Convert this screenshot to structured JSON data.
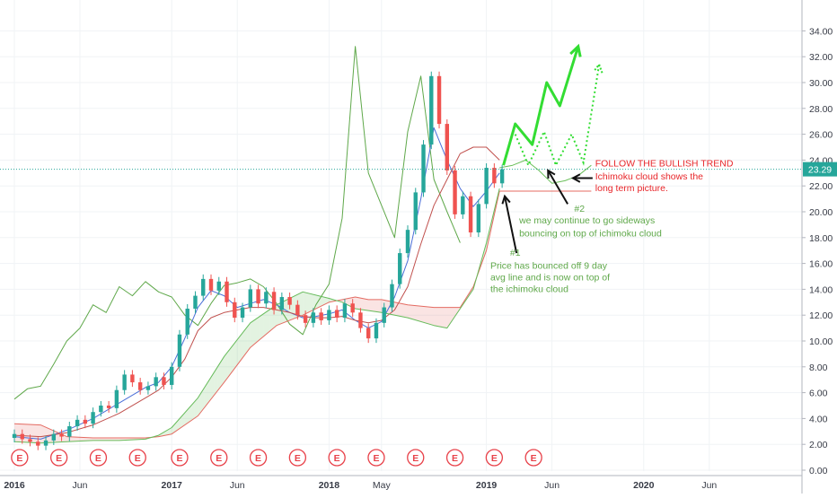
{
  "chart_data": {
    "type": "candlestick",
    "title": "",
    "xlabel": "",
    "ylabel": "",
    "ylim": [
      0,
      35
    ],
    "y_ticks": [
      "0.00",
      "2.00",
      "4.00",
      "6.00",
      "8.00",
      "10.00",
      "12.00",
      "14.00",
      "16.00",
      "18.00",
      "20.00",
      "22.00",
      "24.00",
      "26.00",
      "28.00",
      "30.00",
      "32.00",
      "34.00"
    ],
    "x_ticks": [
      {
        "label": "2016",
        "t": 0.0
      },
      {
        "label": "Jun",
        "t": 5.0
      },
      {
        "label": "2017",
        "t": 12.0
      },
      {
        "label": "Jun",
        "t": 17.0
      },
      {
        "label": "2018",
        "t": 24.0
      },
      {
        "label": "May",
        "t": 28.0
      },
      {
        "label": "2019",
        "t": 36.0
      },
      {
        "label": "Jun",
        "t": 41.0
      },
      {
        "label": "2020",
        "t": 48.0
      },
      {
        "label": "Jun",
        "t": 53.0
      }
    ],
    "current_price": {
      "label": "23.29",
      "value": 23.29
    },
    "earnings_marker_label": "E",
    "earnings_t": [
      0.4,
      3.4,
      6.4,
      9.4,
      12.6,
      15.6,
      18.6,
      21.6,
      24.6,
      27.6,
      30.6,
      33.6,
      36.6,
      39.6
    ],
    "grid": true,
    "candles": [
      {
        "t": 0.0,
        "o": 2.5,
        "c": 2.8
      },
      {
        "t": 0.6,
        "o": 2.8,
        "c": 2.4
      },
      {
        "t": 1.2,
        "o": 2.4,
        "c": 2.2
      },
      {
        "t": 1.8,
        "o": 2.2,
        "c": 1.9
      },
      {
        "t": 2.4,
        "o": 1.9,
        "c": 2.3
      },
      {
        "t": 3.0,
        "o": 2.3,
        "c": 2.8
      },
      {
        "t": 3.6,
        "o": 2.8,
        "c": 2.6
      },
      {
        "t": 4.2,
        "o": 2.6,
        "c": 3.4
      },
      {
        "t": 4.8,
        "o": 3.4,
        "c": 3.9
      },
      {
        "t": 5.4,
        "o": 3.9,
        "c": 3.6
      },
      {
        "t": 6.0,
        "o": 3.6,
        "c": 4.5
      },
      {
        "t": 6.6,
        "o": 4.5,
        "c": 5.0
      },
      {
        "t": 7.2,
        "o": 5.0,
        "c": 4.8
      },
      {
        "t": 7.8,
        "o": 4.8,
        "c": 6.2
      },
      {
        "t": 8.4,
        "o": 6.2,
        "c": 7.4
      },
      {
        "t": 9.0,
        "o": 7.4,
        "c": 6.8
      },
      {
        "t": 9.6,
        "o": 6.8,
        "c": 6.2
      },
      {
        "t": 10.2,
        "o": 6.2,
        "c": 6.5
      },
      {
        "t": 10.8,
        "o": 6.5,
        "c": 7.2
      },
      {
        "t": 11.4,
        "o": 7.2,
        "c": 6.6
      },
      {
        "t": 12.0,
        "o": 6.6,
        "c": 8.0
      },
      {
        "t": 12.6,
        "o": 8.0,
        "c": 10.5
      },
      {
        "t": 13.2,
        "o": 10.5,
        "c": 12.5
      },
      {
        "t": 13.8,
        "o": 12.5,
        "c": 13.5
      },
      {
        "t": 14.4,
        "o": 13.5,
        "c": 14.8
      },
      {
        "t": 15.0,
        "o": 14.8,
        "c": 13.9
      },
      {
        "t": 15.6,
        "o": 13.9,
        "c": 14.6
      },
      {
        "t": 16.2,
        "o": 14.6,
        "c": 13.0
      },
      {
        "t": 16.8,
        "o": 13.0,
        "c": 11.8
      },
      {
        "t": 17.4,
        "o": 11.8,
        "c": 12.6
      },
      {
        "t": 18.0,
        "o": 12.6,
        "c": 14.0
      },
      {
        "t": 18.6,
        "o": 14.0,
        "c": 12.9
      },
      {
        "t": 19.2,
        "o": 12.9,
        "c": 13.8
      },
      {
        "t": 19.8,
        "o": 13.8,
        "c": 12.4
      },
      {
        "t": 20.4,
        "o": 12.4,
        "c": 13.4
      },
      {
        "t": 21.0,
        "o": 13.4,
        "c": 12.8
      },
      {
        "t": 21.6,
        "o": 12.8,
        "c": 12.0
      },
      {
        "t": 22.2,
        "o": 12.0,
        "c": 11.4
      },
      {
        "t": 22.8,
        "o": 11.4,
        "c": 12.2
      },
      {
        "t": 23.4,
        "o": 12.2,
        "c": 11.6
      },
      {
        "t": 24.0,
        "o": 11.6,
        "c": 12.4
      },
      {
        "t": 24.6,
        "o": 12.4,
        "c": 11.8
      },
      {
        "t": 25.2,
        "o": 11.8,
        "c": 12.9
      },
      {
        "t": 25.8,
        "o": 12.9,
        "c": 12.2
      },
      {
        "t": 26.4,
        "o": 12.2,
        "c": 11.0
      },
      {
        "t": 27.0,
        "o": 11.0,
        "c": 10.2
      },
      {
        "t": 27.6,
        "o": 10.2,
        "c": 11.4
      },
      {
        "t": 28.2,
        "o": 11.4,
        "c": 12.6
      },
      {
        "t": 28.8,
        "o": 12.6,
        "c": 14.4
      },
      {
        "t": 29.4,
        "o": 14.4,
        "c": 16.8
      },
      {
        "t": 30.0,
        "o": 16.8,
        "c": 18.6
      },
      {
        "t": 30.6,
        "o": 18.6,
        "c": 21.5
      },
      {
        "t": 31.2,
        "o": 21.5,
        "c": 25.2
      },
      {
        "t": 31.8,
        "o": 25.2,
        "c": 30.5
      },
      {
        "t": 32.4,
        "o": 30.5,
        "c": 26.8
      },
      {
        "t": 33.0,
        "o": 26.8,
        "c": 23.2
      },
      {
        "t": 33.6,
        "o": 23.2,
        "c": 19.8
      },
      {
        "t": 34.2,
        "o": 19.8,
        "c": 21.2
      },
      {
        "t": 34.8,
        "o": 21.2,
        "c": 18.4
      },
      {
        "t": 35.4,
        "o": 18.4,
        "c": 20.6
      },
      {
        "t": 36.0,
        "o": 20.6,
        "c": 23.4
      },
      {
        "t": 36.6,
        "o": 23.4,
        "c": 22.2
      },
      {
        "t": 37.2,
        "o": 22.2,
        "c": 23.29
      }
    ],
    "series": [
      {
        "color": "#5fa84a",
        "values": [
          [
            0,
            5.5
          ],
          [
            1,
            6.3
          ],
          [
            2,
            6.5
          ],
          [
            3,
            8.2
          ],
          [
            4,
            10.0
          ],
          [
            5,
            11.0
          ],
          [
            6,
            12.8
          ],
          [
            7,
            12.2
          ],
          [
            8,
            14.2
          ],
          [
            9,
            13.5
          ],
          [
            10,
            14.6
          ],
          [
            11,
            13.8
          ],
          [
            12,
            13.4
          ],
          [
            13,
            12.0
          ],
          [
            14,
            11.2
          ],
          [
            15,
            12.9
          ],
          [
            16,
            14.3
          ],
          [
            17,
            14.5
          ],
          [
            18,
            14.8
          ],
          [
            19,
            14.2
          ],
          [
            20,
            12.9
          ],
          [
            21,
            11.3
          ],
          [
            22,
            10.5
          ],
          [
            23,
            12.8
          ],
          [
            24,
            14.4
          ],
          [
            25,
            19.5
          ],
          [
            26,
            32.8
          ],
          [
            27,
            23.0
          ],
          [
            28,
            20.5
          ],
          [
            29,
            18.0
          ],
          [
            30,
            26.2
          ],
          [
            31,
            30.5
          ],
          [
            32,
            22.5
          ],
          [
            33,
            20.0
          ],
          [
            34,
            17.6
          ]
        ]
      },
      {
        "color": "#4a6ed8",
        "values": [
          [
            0,
            2.6
          ],
          [
            2,
            2.4
          ],
          [
            4,
            3.1
          ],
          [
            6,
            4.0
          ],
          [
            8,
            5.2
          ],
          [
            10,
            6.4
          ],
          [
            11,
            6.8
          ],
          [
            12,
            8.0
          ],
          [
            13,
            10.2
          ],
          [
            14,
            12.6
          ],
          [
            15,
            13.9
          ],
          [
            16,
            13.5
          ],
          [
            17,
            12.6
          ],
          [
            18,
            12.9
          ],
          [
            19,
            13.2
          ],
          [
            20,
            12.8
          ],
          [
            21,
            12.2
          ],
          [
            22,
            11.8
          ],
          [
            23,
            11.9
          ],
          [
            24,
            12.1
          ],
          [
            25,
            12.4
          ],
          [
            26,
            11.6
          ],
          [
            27,
            11.0
          ],
          [
            28,
            11.5
          ],
          [
            29,
            13.4
          ],
          [
            30,
            16.2
          ],
          [
            31,
            21.0
          ],
          [
            32,
            26.5
          ],
          [
            33,
            24.0
          ],
          [
            34,
            21.8
          ],
          [
            35,
            20.4
          ],
          [
            36,
            21.6
          ],
          [
            37,
            23.0
          ]
        ]
      },
      {
        "color": "#c0504d",
        "values": [
          [
            0,
            2.7
          ],
          [
            2,
            2.6
          ],
          [
            4,
            2.9
          ],
          [
            6,
            3.5
          ],
          [
            8,
            4.4
          ],
          [
            10,
            5.6
          ],
          [
            11,
            6.2
          ],
          [
            12,
            7.2
          ],
          [
            13,
            8.6
          ],
          [
            14,
            10.8
          ],
          [
            15,
            11.8
          ],
          [
            16,
            12.2
          ],
          [
            17,
            12.4
          ],
          [
            18,
            12.6
          ],
          [
            19,
            12.6
          ],
          [
            20,
            12.4
          ],
          [
            21,
            12.2
          ],
          [
            22,
            11.9
          ],
          [
            23,
            11.8
          ],
          [
            24,
            11.8
          ],
          [
            25,
            11.9
          ],
          [
            26,
            11.6
          ],
          [
            27,
            11.4
          ],
          [
            28,
            11.6
          ],
          [
            29,
            12.4
          ],
          [
            30,
            14.2
          ],
          [
            31,
            17.5
          ],
          [
            32,
            20.5
          ],
          [
            33,
            22.5
          ],
          [
            34,
            24.5
          ],
          [
            35,
            25.0
          ],
          [
            36,
            25.0
          ],
          [
            37,
            24.0
          ]
        ]
      },
      {
        "color": "#e46b62",
        "values": [
          [
            0,
            3.6
          ],
          [
            2,
            3.5
          ],
          [
            4,
            2.6
          ],
          [
            6,
            2.5
          ],
          [
            8,
            2.5
          ],
          [
            10,
            2.5
          ],
          [
            11,
            2.6
          ],
          [
            12,
            2.8
          ],
          [
            14,
            4.2
          ],
          [
            16,
            6.8
          ],
          [
            18,
            9.5
          ],
          [
            20,
            11.2
          ],
          [
            22,
            12.0
          ],
          [
            24,
            13.0
          ],
          [
            26,
            13.4
          ],
          [
            27,
            13.2
          ],
          [
            28,
            13.2
          ],
          [
            30,
            12.8
          ],
          [
            32,
            12.6
          ],
          [
            33,
            12.6
          ],
          [
            34,
            12.6
          ],
          [
            35,
            14.2
          ],
          [
            36,
            17.0
          ],
          [
            37,
            21.6
          ]
        ]
      },
      {
        "color": "#66bb5a",
        "values": [
          [
            0,
            2.2
          ],
          [
            2,
            2.1
          ],
          [
            4,
            2.2
          ],
          [
            6,
            2.3
          ],
          [
            8,
            2.3
          ],
          [
            10,
            2.4
          ],
          [
            11,
            2.7
          ],
          [
            12,
            3.3
          ],
          [
            14,
            5.6
          ],
          [
            16,
            8.8
          ],
          [
            18,
            11.4
          ],
          [
            20,
            12.8
          ],
          [
            22,
            13.8
          ],
          [
            24,
            13.3
          ],
          [
            25,
            13.0
          ],
          [
            26,
            12.5
          ],
          [
            28,
            12.2
          ],
          [
            30,
            11.8
          ],
          [
            32,
            11.2
          ],
          [
            33,
            11.0
          ],
          [
            34,
            12.5
          ],
          [
            35,
            14.0
          ],
          [
            36,
            17.6
          ],
          [
            37,
            21.8
          ]
        ]
      },
      {
        "color": "#6abf5a",
        "values": [
          [
            37,
            23.4
          ],
          [
            38,
            23.6
          ],
          [
            39,
            24.0
          ],
          [
            40,
            23.2
          ],
          [
            41,
            22.2
          ],
          [
            42,
            22.4
          ],
          [
            43,
            22.8
          ],
          [
            44,
            23.6
          ]
        ]
      },
      {
        "color": "#e46b62",
        "values": [
          [
            37,
            21.6
          ],
          [
            44,
            21.6
          ]
        ]
      }
    ],
    "forecast_arrow_1": [
      [
        37.3,
        23.6
      ],
      [
        38.2,
        26.8
      ],
      [
        39.5,
        25.2
      ],
      [
        40.6,
        30.0
      ],
      [
        41.6,
        28.2
      ],
      [
        43.0,
        32.8
      ]
    ],
    "forecast_arrow_2": [
      [
        38.2,
        26.0
      ],
      [
        39.2,
        23.6
      ],
      [
        40.4,
        26.2
      ],
      [
        41.3,
        23.6
      ],
      [
        42.5,
        26.0
      ],
      [
        43.4,
        23.8
      ],
      [
        44.6,
        31.4
      ]
    ],
    "annotations": [
      {
        "text": "FOLLOW THE BULLISH TREND",
        "color": "#e8262a",
        "t": 44.3,
        "y": 23.5
      },
      {
        "text": "Ichimoku cloud shows the",
        "color": "#e8262a",
        "t": 44.3,
        "y": 22.5
      },
      {
        "text": "long term picture.",
        "color": "#e8262a",
        "t": 44.3,
        "y": 21.6
      },
      {
        "text": "#2",
        "color": "#5fa84a",
        "t": 42.7,
        "y": 20.0
      },
      {
        "text": "we may continue to go sideways",
        "color": "#5fa84a",
        "t": 38.5,
        "y": 19.1
      },
      {
        "text": "bouncing on top of ichimoku cloud",
        "color": "#5fa84a",
        "t": 38.5,
        "y": 18.1
      },
      {
        "text": "#1",
        "color": "#5fa84a",
        "t": 37.8,
        "y": 16.6
      },
      {
        "text": "Price has bounced off 9 day",
        "color": "#5fa84a",
        "t": 36.3,
        "y": 15.6
      },
      {
        "text": "avg line and is now on top of",
        "color": "#5fa84a",
        "t": 36.3,
        "y": 14.7
      },
      {
        "text": "the ichimoku cloud",
        "color": "#5fa84a",
        "t": 36.3,
        "y": 13.8
      }
    ]
  }
}
